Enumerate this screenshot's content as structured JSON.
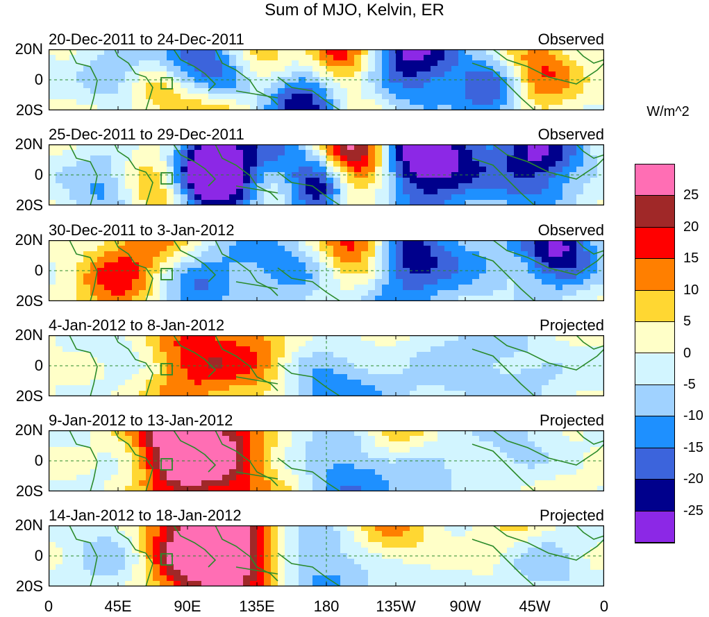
{
  "chart_data": {
    "type": "heatmap",
    "title": "Sum of MJO, Kelvin, ER",
    "units": "W/m^2",
    "ylabels": [
      "20N",
      "0",
      "20S"
    ],
    "xlabels": [
      "0",
      "45E",
      "90E",
      "135E",
      "180",
      "135W",
      "90W",
      "45W",
      "0"
    ],
    "colorbar": {
      "labels": [
        "25",
        "20",
        "15",
        "10",
        "5",
        "0",
        "-5",
        "-10",
        "-15",
        "-20",
        "-25"
      ],
      "colors": [
        "#ff6eb4",
        "#a02828",
        "#ff0000",
        "#ff7f00",
        "#ffd732",
        "#ffffc8",
        "#d2f5ff",
        "#a0d2ff",
        "#1e90ff",
        "#3c64dc",
        "#00008c",
        "#8c28e6"
      ]
    },
    "panels": [
      {
        "date": "20-Dec-2011 to 24-Dec-2011",
        "kind": "Observed"
      },
      {
        "date": "25-Dec-2011 to 29-Dec-2011",
        "kind": "Observed"
      },
      {
        "date": "30-Dec-2011 to 3-Jan-2012",
        "kind": "Observed"
      },
      {
        "date": "4-Jan-2012 to 8-Jan-2012",
        "kind": "Projected"
      },
      {
        "date": "9-Jan-2012 to 13-Jan-2012",
        "kind": "Projected"
      },
      {
        "date": "14-Jan-2012 to 18-Jan-2012",
        "kind": "Projected"
      }
    ]
  }
}
